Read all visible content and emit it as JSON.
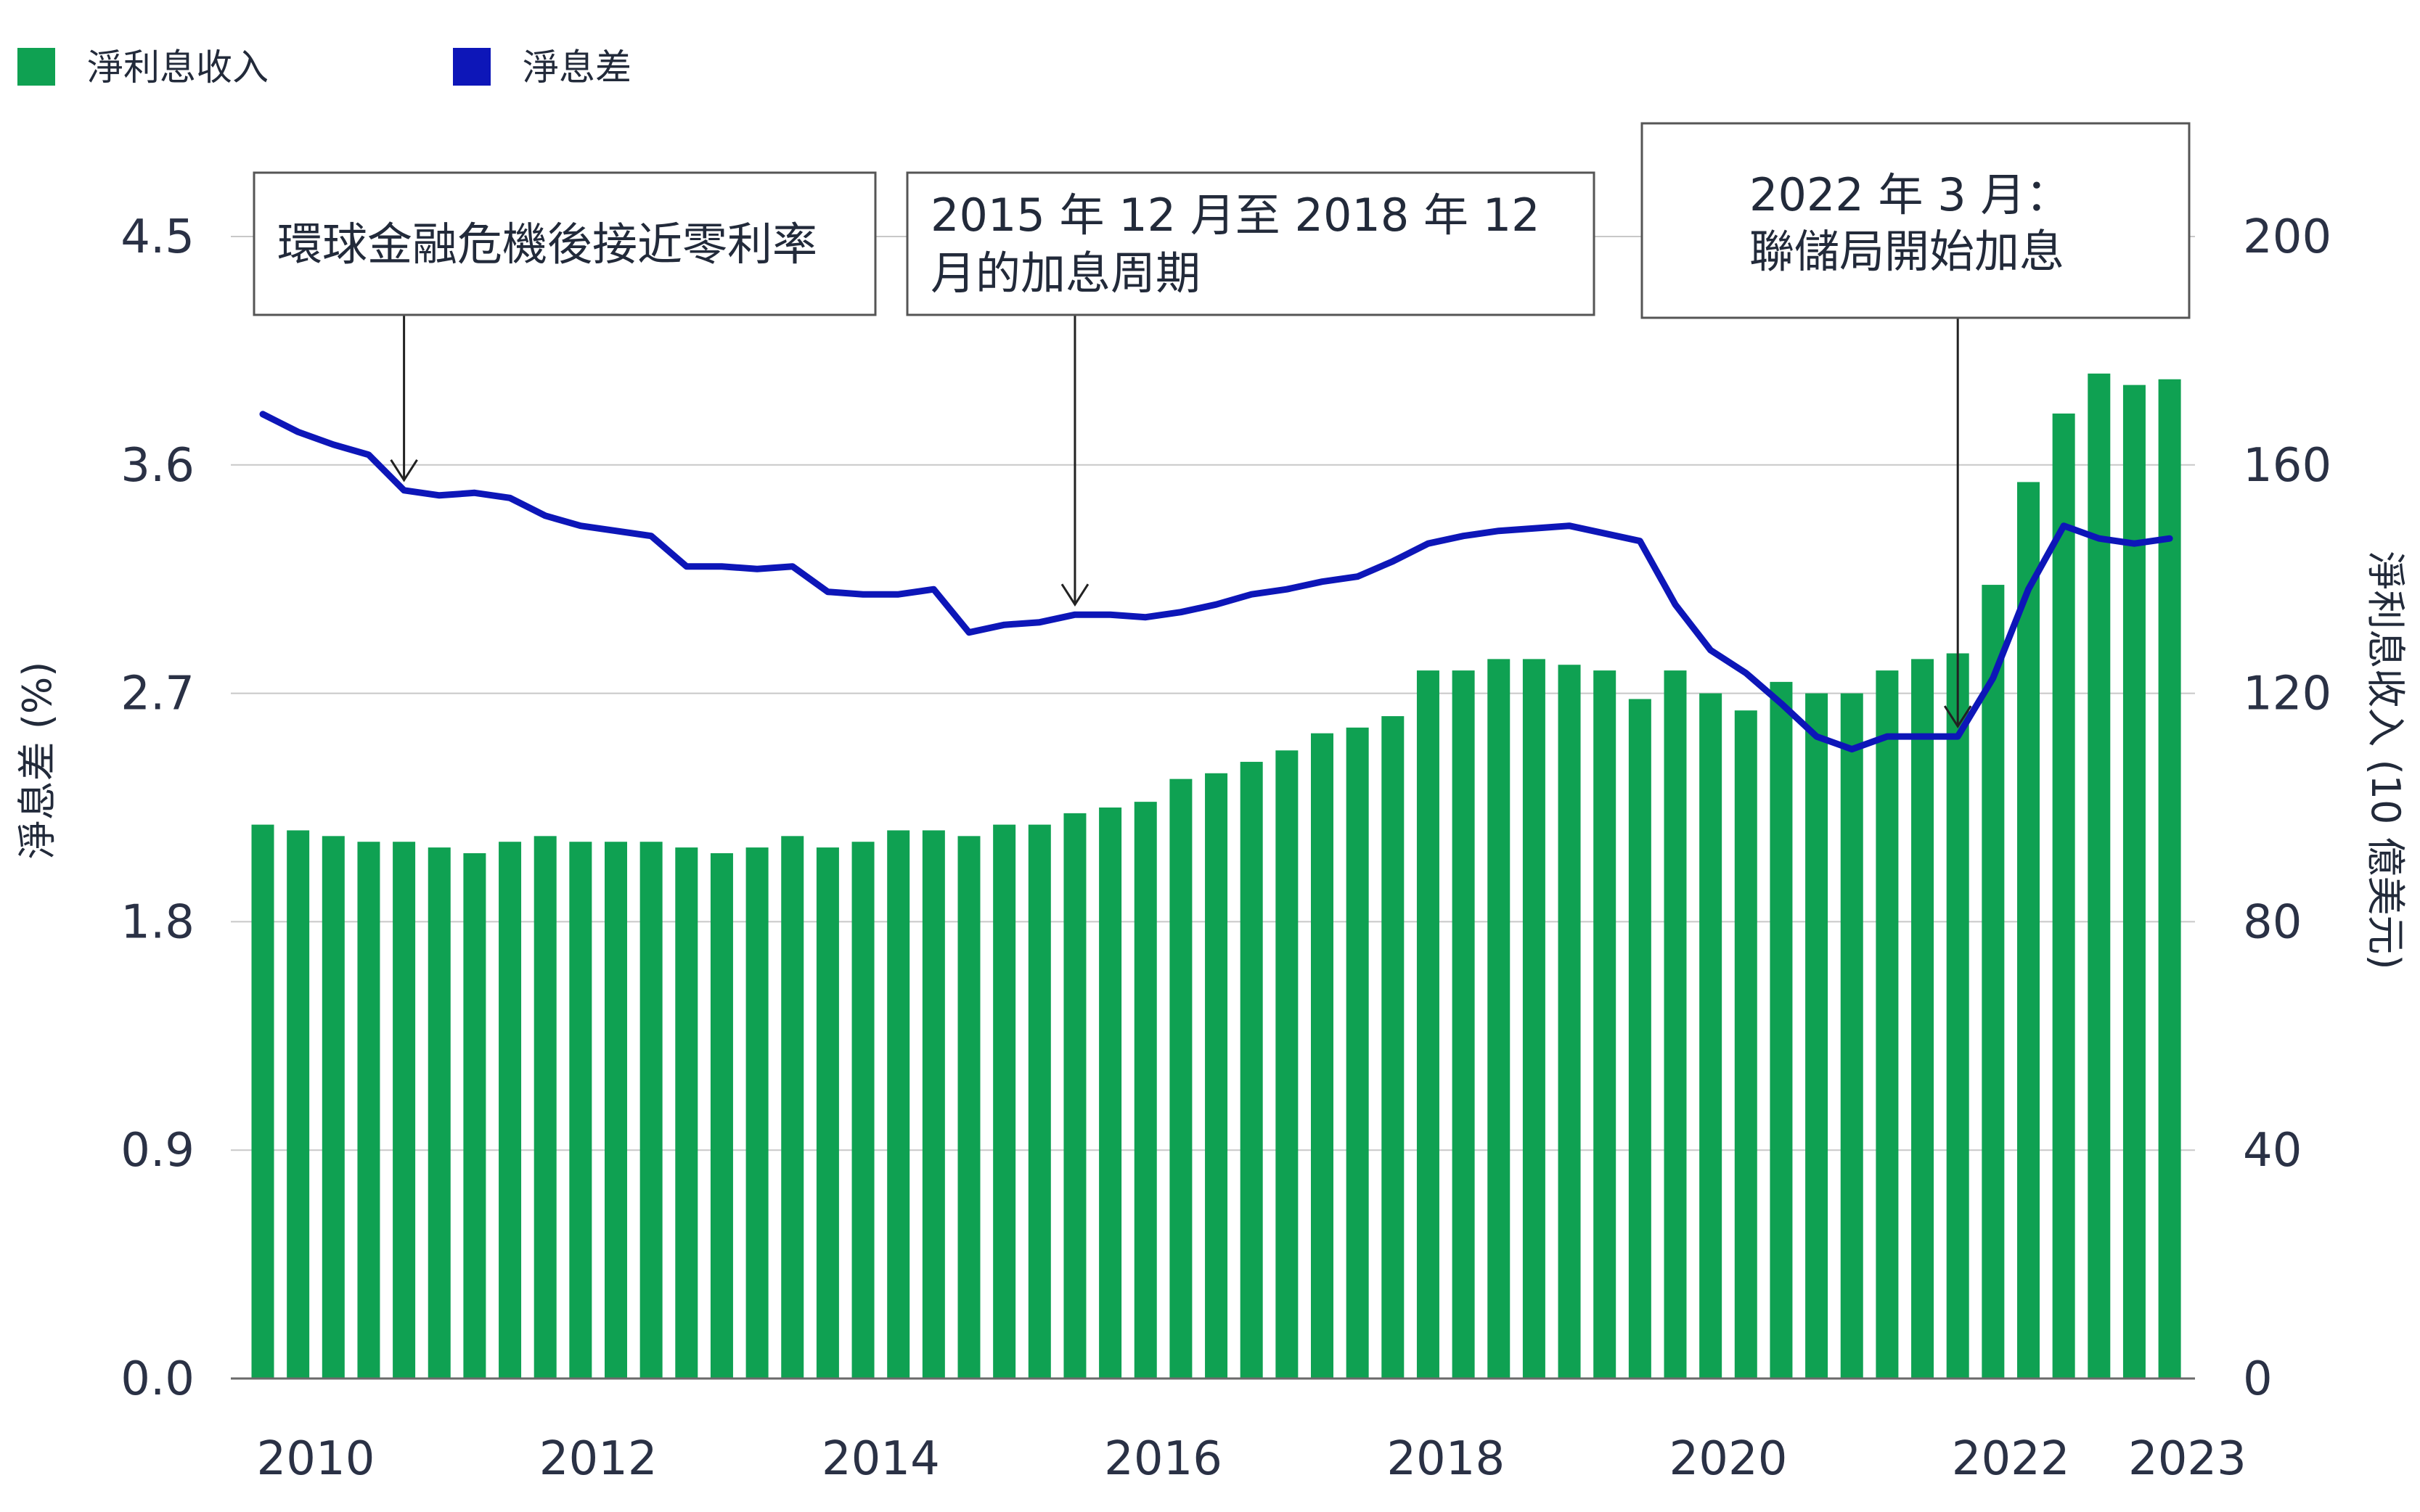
{
  "chart_data": {
    "type": "bar+line",
    "legend": [
      {
        "label": "淨利息收入",
        "color": "#0fa152"
      },
      {
        "label": "淨息差",
        "color": "#0d16b8"
      }
    ],
    "left_axis": {
      "label": "淨息差 (%)",
      "ticks": [
        "0.0",
        "0.9",
        "1.8",
        "2.7",
        "3.6",
        "4.5"
      ],
      "range": [
        0,
        4.5
      ]
    },
    "right_axis": {
      "label": "淨利息收入 (10 億美元)",
      "ticks": [
        "0",
        "40",
        "80",
        "120",
        "160",
        "200"
      ],
      "range": [
        0,
        200
      ]
    },
    "x_ticks": [
      {
        "label": "2010",
        "index": 1.5
      },
      {
        "label": "2012",
        "index": 9.5
      },
      {
        "label": "2014",
        "index": 17.5
      },
      {
        "label": "2016",
        "index": 25.5
      },
      {
        "label": "2018",
        "index": 33.5
      },
      {
        "label": "2020",
        "index": 41.5
      },
      {
        "label": "2022",
        "index": 49.5
      },
      {
        "label": "2023",
        "index": 54.5
      }
    ],
    "series": [
      {
        "name": "淨利息收入",
        "type": "bar",
        "axis": "right",
        "values": [
          97,
          96,
          95,
          94,
          94,
          93,
          92,
          94,
          95,
          94,
          94,
          94,
          93,
          92,
          93,
          95,
          93,
          94,
          96,
          96,
          95,
          97,
          97,
          99,
          100,
          101,
          105,
          106,
          108,
          110,
          113,
          114,
          116,
          124,
          124,
          126,
          126,
          125,
          124,
          119,
          124,
          120,
          117,
          122,
          120,
          120,
          124,
          126,
          127,
          139,
          157,
          169,
          176,
          174,
          175
        ]
      },
      {
        "name": "淨息差",
        "type": "line",
        "axis": "left",
        "values": [
          3.8,
          3.73,
          3.68,
          3.64,
          3.5,
          3.48,
          3.49,
          3.47,
          3.4,
          3.36,
          3.34,
          3.32,
          3.2,
          3.2,
          3.19,
          3.2,
          3.1,
          3.09,
          3.09,
          3.11,
          2.94,
          2.97,
          2.98,
          3.01,
          3.01,
          3.0,
          3.02,
          3.05,
          3.09,
          3.11,
          3.14,
          3.16,
          3.22,
          3.29,
          3.32,
          3.34,
          3.35,
          3.36,
          3.33,
          3.3,
          3.05,
          2.87,
          2.78,
          2.66,
          2.53,
          2.48,
          2.53,
          2.53,
          2.53,
          2.76,
          3.11,
          3.36,
          3.31,
          3.29,
          3.31
        ]
      }
    ],
    "annotations": [
      {
        "lines": [
          "環球金融危機後接近零利率"
        ],
        "index": 4
      },
      {
        "lines": [
          "2015 年 12 月至 2018 年 12",
          "月的加息周期"
        ],
        "index": 23
      },
      {
        "lines": [
          "2022 年 3 月：",
          "聯儲局開始加息"
        ],
        "index": 48
      }
    ]
  }
}
